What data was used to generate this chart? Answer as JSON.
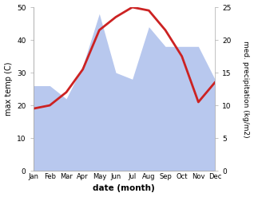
{
  "months": [
    "Jan",
    "Feb",
    "Mar",
    "Apr",
    "May",
    "Jun",
    "Jul",
    "Aug",
    "Sep",
    "Oct",
    "Nov",
    "Dec"
  ],
  "month_indices": [
    0,
    1,
    2,
    3,
    4,
    5,
    6,
    7,
    8,
    9,
    10,
    11
  ],
  "temperature": [
    19,
    20,
    24,
    31,
    43,
    47,
    50,
    49,
    43,
    35,
    21,
    27
  ],
  "precipitation": [
    13,
    13,
    11,
    16,
    24,
    15,
    14,
    22,
    19,
    19,
    19,
    14
  ],
  "temp_ylim": [
    0,
    50
  ],
  "precip_ylim": [
    0,
    25
  ],
  "temp_yticks": [
    0,
    10,
    20,
    30,
    40,
    50
  ],
  "precip_yticks": [
    0,
    5,
    10,
    15,
    20,
    25
  ],
  "temp_color": "#cc2222",
  "precip_color": "#b8c8ee",
  "ylabel_left": "max temp (C)",
  "ylabel_right": "med. precipitation (kg/m2)",
  "xlabel": "date (month)",
  "bg_color": "#ffffff",
  "spine_color": "#aaaaaa",
  "temp_linewidth": 2.0
}
